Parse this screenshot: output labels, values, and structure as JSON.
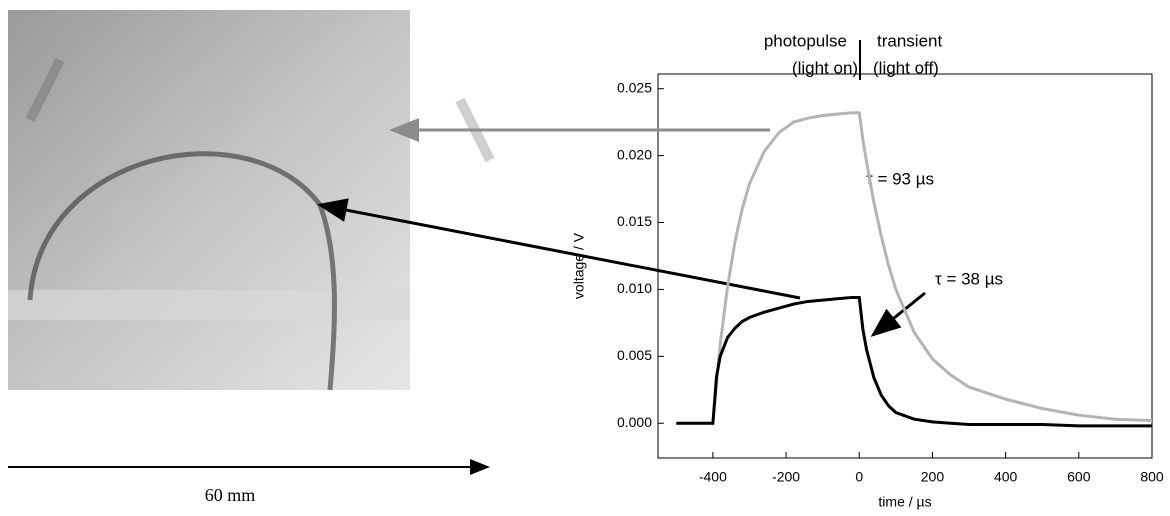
{
  "chart_data": {
    "type": "line",
    "xlabel": "time / µs",
    "ylabel": "voltage / V",
    "annotations": [
      "photopulse",
      "(light on)",
      "transient",
      "(light off)",
      "τ = 93 µs",
      "τ = 38 µs"
    ],
    "scale_label": "60 mm",
    "x": [
      -500,
      -450,
      -400,
      -390,
      -380,
      -360,
      -340,
      -320,
      -300,
      -260,
      -220,
      -180,
      -140,
      -100,
      -60,
      -20,
      0,
      10,
      20,
      40,
      60,
      80,
      100,
      150,
      200,
      250,
      300,
      400,
      500,
      600,
      700,
      800
    ],
    "series": [
      {
        "color": "#b4b4b4",
        "values": [
          0,
          0,
          0,
          0.0031,
          0.0059,
          0.0102,
          0.0135,
          0.016,
          0.0179,
          0.0203,
          0.0217,
          0.0225,
          0.0228,
          0.023,
          0.0231,
          0.0232,
          0.0232,
          0.0212,
          0.0195,
          0.0165,
          0.014,
          0.0118,
          0.01,
          0.0068,
          0.0048,
          0.0036,
          0.0027,
          0.0018,
          0.0011,
          0.0006,
          0.0003,
          0.0002
        ]
      },
      {
        "color": "#000000",
        "values": [
          0,
          0,
          0,
          0.0035,
          0.005,
          0.0064,
          0.0071,
          0.0076,
          0.0079,
          0.0083,
          0.0086,
          0.0089,
          0.0091,
          0.0092,
          0.0093,
          0.0094,
          0.0094,
          0.007,
          0.0055,
          0.0034,
          0.0021,
          0.0013,
          0.0008,
          0.0003,
          0.0001,
          0,
          -0.0001,
          -0.0001,
          -0.0001,
          -0.0002,
          -0.0002,
          -0.0002
        ]
      }
    ],
    "xlim": [
      -550,
      800
    ],
    "ylim": [
      -0.0026,
      0.0261
    ],
    "xticks": [
      -400,
      -200,
      0,
      200,
      400,
      600,
      800
    ],
    "yticks": [
      {
        "value": 0,
        "label": "0.000"
      },
      {
        "value": 0.005,
        "label": "0.005"
      },
      {
        "value": 0.01,
        "label": "0.010"
      },
      {
        "value": 0.015,
        "label": "0.015"
      },
      {
        "value": 0.02,
        "label": "0.020"
      },
      {
        "value": 0.025,
        "label": "0.025"
      }
    ]
  }
}
